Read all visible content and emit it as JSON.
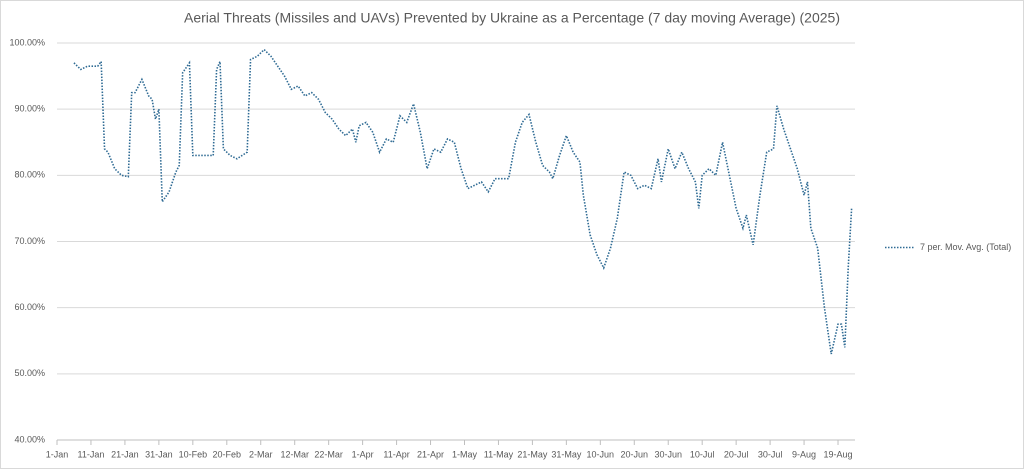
{
  "chart_data": {
    "type": "line",
    "title": "Aerial Threats (Missiles and UAVs) Prevented by Ukraine as a Percentage (7 day moving Average) (2025)",
    "x": [
      5,
      7,
      9,
      12,
      13,
      14,
      15,
      17,
      19,
      21,
      22,
      23,
      25,
      27,
      28,
      29,
      30,
      31,
      33,
      35,
      36,
      37,
      39,
      40,
      42,
      44,
      46,
      47,
      48,
      49,
      51,
      53,
      56,
      57,
      59,
      61,
      63,
      65,
      67,
      69,
      71,
      73,
      75,
      77,
      79,
      81,
      83,
      85,
      87,
      88,
      89,
      91,
      93,
      95,
      97,
      99,
      101,
      103,
      105,
      107,
      109,
      111,
      113,
      115,
      117,
      119,
      121,
      123,
      125,
      127,
      129,
      131,
      133,
      135,
      137,
      139,
      141,
      143,
      145,
      146,
      148,
      150,
      152,
      154,
      155,
      157,
      159,
      161,
      163,
      165,
      167,
      169,
      171,
      173,
      175,
      177,
      178,
      180,
      182,
      184,
      186,
      188,
      189,
      190,
      192,
      194,
      196,
      198,
      200,
      202,
      203,
      205,
      207,
      209,
      211,
      212,
      214,
      216,
      218,
      220,
      221,
      222,
      224,
      226,
      228,
      230,
      231,
      232,
      233,
      234
    ],
    "series": [
      {
        "name": "7 per. Mov. Avg. (Total)",
        "color": "#2f6b94",
        "values": [
          97,
          96,
          96.5,
          96.5,
          97.2,
          84,
          83.5,
          81,
          80,
          79.8,
          92.5,
          92.5,
          94.5,
          92,
          91.5,
          88.5,
          90,
          76,
          77.5,
          80.5,
          81.5,
          95.5,
          97,
          83,
          83,
          83,
          83,
          96,
          97.2,
          84,
          83,
          82.5,
          83.5,
          97.5,
          98,
          99,
          98,
          96.5,
          95,
          93,
          93.5,
          92,
          92.5,
          91.5,
          89.5,
          88.5,
          87,
          86,
          87,
          85,
          87.5,
          88,
          86.5,
          83.5,
          85.5,
          85,
          89,
          88,
          90.8,
          86.5,
          81,
          84,
          83.5,
          85.5,
          85,
          81,
          78,
          78.5,
          79,
          77.5,
          79.5,
          79.5,
          79.5,
          85,
          88,
          89.2,
          85,
          81.5,
          80.5,
          79.5,
          83,
          86,
          83.5,
          82,
          77,
          71,
          68,
          66,
          69,
          73.5,
          80.5,
          80,
          78,
          78.5,
          78,
          82.5,
          79,
          84,
          81,
          83.5,
          81,
          79,
          75,
          80,
          81,
          80,
          85,
          80,
          75,
          72,
          74,
          69.5,
          77,
          83.5,
          84,
          90.5,
          87,
          84,
          81,
          77,
          79,
          72,
          69,
          60,
          53,
          57.5,
          57.5,
          54,
          66,
          75
        ]
      }
    ],
    "xlim": [
      0,
      235
    ],
    "xticks": [
      {
        "value": 0,
        "label": "1-Jan"
      },
      {
        "value": 10,
        "label": "11-Jan"
      },
      {
        "value": 20,
        "label": "21-Jan"
      },
      {
        "value": 30,
        "label": "31-Jan"
      },
      {
        "value": 40,
        "label": "10-Feb"
      },
      {
        "value": 50,
        "label": "20-Feb"
      },
      {
        "value": 60,
        "label": "2-Mar"
      },
      {
        "value": 70,
        "label": "12-Mar"
      },
      {
        "value": 80,
        "label": "22-Mar"
      },
      {
        "value": 90,
        "label": "1-Apr"
      },
      {
        "value": 100,
        "label": "11-Apr"
      },
      {
        "value": 110,
        "label": "21-Apr"
      },
      {
        "value": 120,
        "label": "1-May"
      },
      {
        "value": 130,
        "label": "11-May"
      },
      {
        "value": 140,
        "label": "21-May"
      },
      {
        "value": 150,
        "label": "31-May"
      },
      {
        "value": 160,
        "label": "10-Jun"
      },
      {
        "value": 170,
        "label": "20-Jun"
      },
      {
        "value": 180,
        "label": "30-Jun"
      },
      {
        "value": 190,
        "label": "10-Jul"
      },
      {
        "value": 200,
        "label": "20-Jul"
      },
      {
        "value": 210,
        "label": "30-Jul"
      },
      {
        "value": 220,
        "label": "9-Aug"
      },
      {
        "value": 230,
        "label": "19-Aug"
      }
    ],
    "ylim": [
      40,
      100
    ],
    "yticks": [
      {
        "value": 40,
        "label": "40.00%"
      },
      {
        "value": 50,
        "label": "50.00%"
      },
      {
        "value": 60,
        "label": "60.00%"
      },
      {
        "value": 70,
        "label": "70.00%"
      },
      {
        "value": 80,
        "label": "80.00%"
      },
      {
        "value": 90,
        "label": "90.00%"
      },
      {
        "value": 100,
        "label": "100.00%"
      }
    ],
    "grid": true,
    "legend": "right"
  }
}
